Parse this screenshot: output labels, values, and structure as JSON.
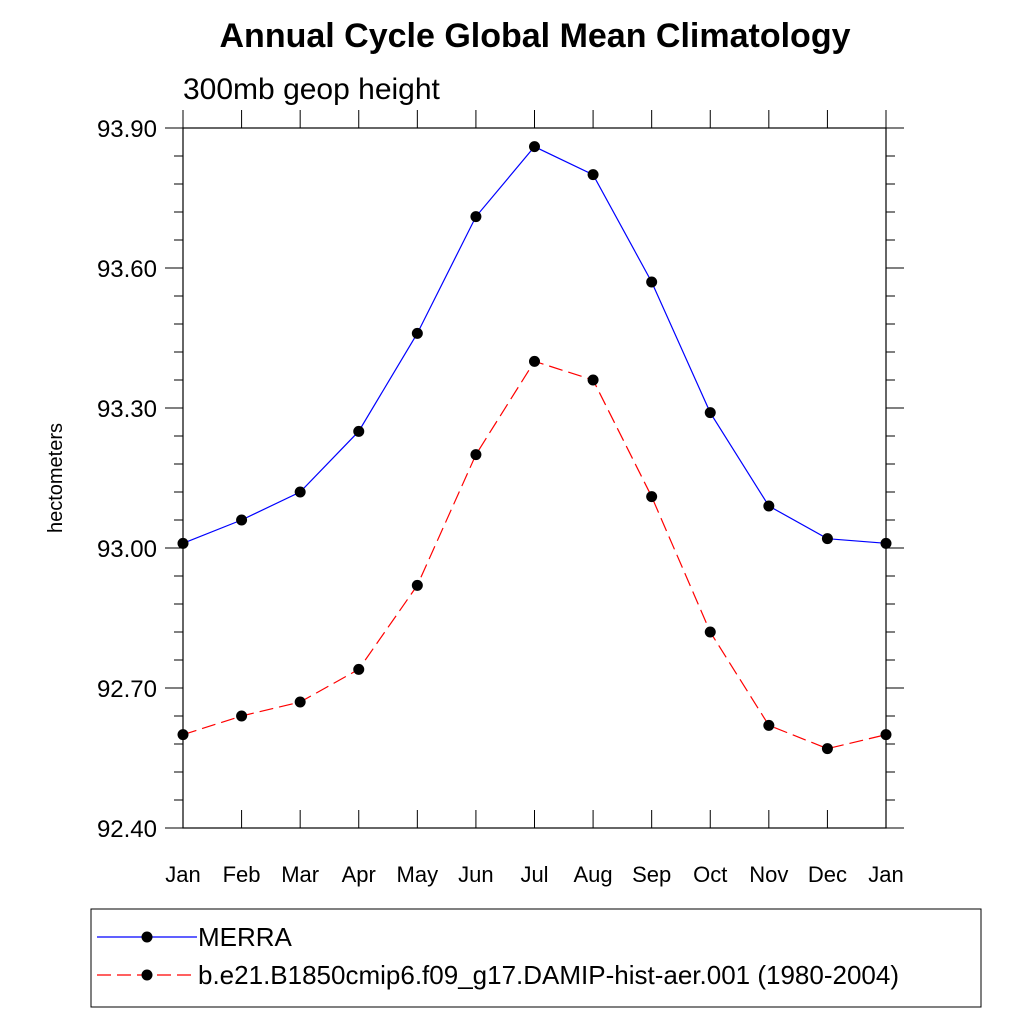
{
  "chart_data": {
    "type": "line",
    "title": "Annual Cycle Global Mean Climatology",
    "subtitle": "300mb geop height",
    "xlabel": "",
    "ylabel": "hectometers",
    "categories": [
      "Jan",
      "Feb",
      "Mar",
      "Apr",
      "May",
      "Jun",
      "Jul",
      "Aug",
      "Sep",
      "Oct",
      "Nov",
      "Dec",
      "Jan"
    ],
    "ylim": [
      92.4,
      93.9
    ],
    "yticks": [
      92.4,
      92.7,
      93.0,
      93.3,
      93.6,
      93.9
    ],
    "ytick_labels": [
      "92.40",
      "92.70",
      "93.00",
      "93.30",
      "93.60",
      "93.90"
    ],
    "grid": false,
    "legend_position": "bottom",
    "series": [
      {
        "name": "MERRA",
        "color": "#0000ff",
        "line_style": "solid",
        "marker": "filled-circle",
        "values": [
          93.01,
          93.06,
          93.12,
          93.25,
          93.46,
          93.71,
          93.86,
          93.8,
          93.57,
          93.29,
          93.09,
          93.02,
          93.01
        ]
      },
      {
        "name": "b.e21.B1850cmip6.f09_g17.DAMIP-hist-aer.001 (1980-2004)",
        "color": "#ff0000",
        "line_style": "dashed",
        "marker": "filled-circle",
        "values": [
          92.6,
          92.64,
          92.67,
          92.74,
          92.92,
          93.2,
          93.4,
          93.36,
          93.11,
          92.82,
          92.62,
          92.57,
          92.6
        ]
      }
    ]
  }
}
